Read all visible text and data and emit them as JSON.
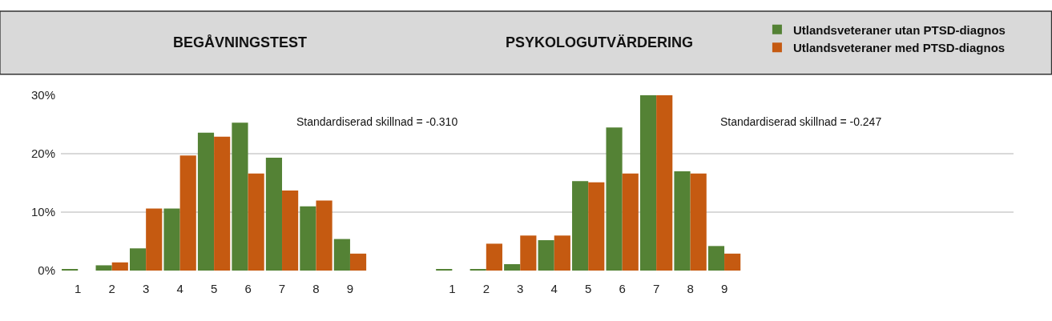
{
  "chart_data": {
    "type": "bar",
    "categories": [
      "1",
      "2",
      "3",
      "4",
      "5",
      "6",
      "7",
      "8",
      "9",
      null,
      null,
      "1",
      "2",
      "3",
      "4",
      "5",
      "6",
      "7",
      "8",
      "9",
      null,
      null,
      null,
      null,
      null,
      null,
      null,
      null
    ],
    "series": [
      {
        "name": "Utlandsveteraner utan PTSD-diagnos",
        "color": "#548235",
        "values": [
          0.2,
          0.9,
          3.8,
          10.6,
          23.6,
          25.3,
          19.3,
          11.0,
          5.4,
          null,
          null,
          0.2,
          0.2,
          1.1,
          5.2,
          15.3,
          24.5,
          30,
          17.0,
          4.2,
          null,
          null,
          null,
          null,
          null,
          null,
          null,
          null
        ]
      },
      {
        "name": "Utlandsveteraner med PTSD-diagnos",
        "color": "#c55a11",
        "values": [
          0,
          1.4,
          10.6,
          19.7,
          22.9,
          16.6,
          13.7,
          12.0,
          2.9,
          null,
          null,
          0,
          4.6,
          6.0,
          6.0,
          15.1,
          16.6,
          30,
          16.6,
          2.9,
          null,
          null,
          null,
          null,
          null,
          null,
          null,
          null
        ]
      }
    ],
    "ylim": [
      0,
      30
    ],
    "yticks": [
      {
        "value": 0,
        "label": "0%"
      },
      {
        "value": 10,
        "label": "10%"
      },
      {
        "value": 20,
        "label": "20%"
      },
      {
        "value": 30,
        "label": "30%"
      }
    ],
    "grid": "y",
    "legend": "top right",
    "annotations": [
      "BEGÅVNINGSTEST",
      "PSYKOLOGUTVÄRDERING",
      "Standardiserad skillnad = -0.310",
      "Standardiserad skillnad = -0.247"
    ]
  }
}
